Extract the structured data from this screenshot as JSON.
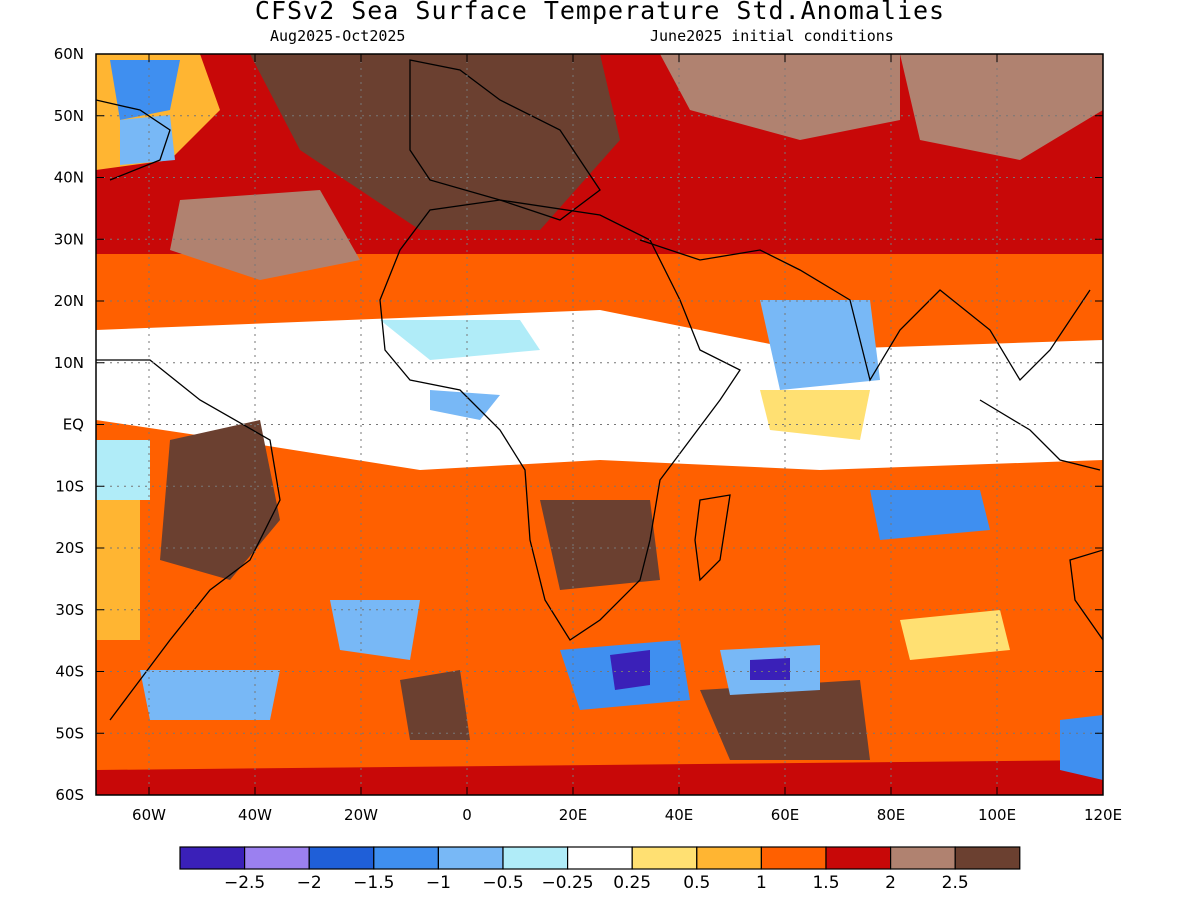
{
  "title": "CFSv2 Sea Surface Temperature Std.Anomalies",
  "subtitle_left": "Aug2025-Oct2025",
  "subtitle_right": "June2025 initial conditions",
  "y_axis_labels": [
    "60N",
    "50N",
    "40N",
    "30N",
    "20N",
    "10N",
    "EQ",
    "10S",
    "20S",
    "30S",
    "40S",
    "50S",
    "60S"
  ],
  "x_axis_labels": [
    "60W",
    "40W",
    "20W",
    "0",
    "20E",
    "40E",
    "60E",
    "80E",
    "100E",
    "120E"
  ],
  "colorbar": {
    "colors": [
      "#3a20b8",
      "#9b80f0",
      "#1f5fd8",
      "#3f8ff0",
      "#78b8f6",
      "#b0ecf8",
      "#ffffff",
      "#ffe072",
      "#ffb532",
      "#ff6000",
      "#c80808",
      "#b08270",
      "#6b4030"
    ],
    "labels": [
      "-2.5",
      "-2",
      "-1.5",
      "-1",
      "-0.5",
      "-0.25",
      "0.25",
      "0.5",
      "1",
      "1.5",
      "2",
      "2.5"
    ]
  },
  "map": {
    "lon_range": [
      "70W",
      "120E"
    ],
    "lat_range": [
      "60S",
      "60N"
    ],
    "grid": "dotted"
  }
}
